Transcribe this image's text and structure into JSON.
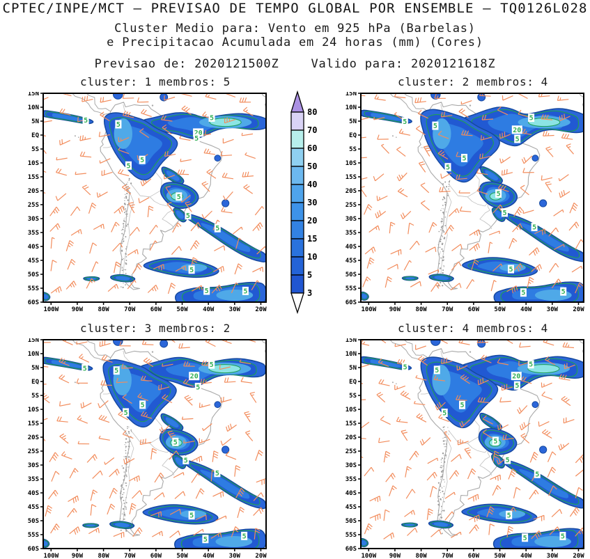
{
  "header": {
    "title": "CPTEC/INPE/MCT – PREVISAO DE TEMPO GLOBAL POR ENSEMBLE – TQ0126L028",
    "subtitle_line1": "Cluster Medio para: Vento em 925 hPa (Barbelas)",
    "subtitle_line2": "e Precipitacao Acumulada em 24 horas (mm) (Cores)",
    "init_label": "Previsao de:",
    "init_value": "2020121500Z",
    "valid_label": "Valido para:",
    "valid_value": "2020121618Z"
  },
  "panels": [
    {
      "cluster_label": "cluster:",
      "cluster_value": "1",
      "membros_label": "membros:",
      "membros_value": "5"
    },
    {
      "cluster_label": "cluster:",
      "cluster_value": "2",
      "membros_label": "membros:",
      "membros_value": "4"
    },
    {
      "cluster_label": "cluster:",
      "cluster_value": "3",
      "membros_label": "membros:",
      "membros_value": "2"
    },
    {
      "cluster_label": "cluster:",
      "cluster_value": "4",
      "membros_label": "membros:",
      "membros_value": "4"
    }
  ],
  "axes": {
    "lat_labels": [
      "15N",
      "10N",
      "5N",
      "EQ",
      "5S",
      "10S",
      "15S",
      "20S",
      "25S",
      "30S",
      "35S",
      "40S",
      "45S",
      "50S",
      "55S",
      "60S"
    ],
    "lon_labels": [
      "100W",
      "90W",
      "80W",
      "70W",
      "60W",
      "50W",
      "40W",
      "30W",
      "20W"
    ]
  },
  "colorbar": {
    "tick_labels_top_to_bottom": [
      "80",
      "70",
      "60",
      "50",
      "40",
      "30",
      "20",
      "15",
      "10",
      "5",
      "3"
    ],
    "cell_colors_top_to_bottom": [
      "#d9d3f5",
      "#b7efec",
      "#8fd0f1",
      "#6cb8ef",
      "#4fa4ec",
      "#3d92e8",
      "#3382e3",
      "#2a72dd",
      "#2463d7",
      "#2156d1"
    ],
    "arrow_top_color": "#ab91e3",
    "arrow_bottom_color": "#ffffff"
  },
  "contour_labels": [
    {
      "value": "5",
      "lon": -86.5,
      "lat": 5.2
    },
    {
      "value": "5",
      "lon": -74.5,
      "lat": 3.9
    },
    {
      "value": "20",
      "lon": -44.5,
      "lat": 1.4
    },
    {
      "value": "5",
      "lon": -44,
      "lat": -1.6
    },
    {
      "value": "5",
      "lon": -39,
      "lat": 5.8
    },
    {
      "value": "5",
      "lon": -70.5,
      "lat": -11
    },
    {
      "value": "5",
      "lon": -64.5,
      "lat": -8.8
    },
    {
      "value": "5",
      "lon": -51.5,
      "lat": -21.6
    },
    {
      "value": "5",
      "lon": -48,
      "lat": -28.4
    },
    {
      "value": "5",
      "lon": -36.5,
      "lat": -33.2
    },
    {
      "value": "5",
      "lon": -46.5,
      "lat": -48.2
    },
    {
      "value": "5",
      "lon": -41,
      "lat": -56.4
    },
    {
      "value": "5",
      "lon": -26.5,
      "lat": -55.6
    }
  ],
  "colors": {
    "wind_barb": "#f28c5c",
    "coastline": "#a9a9a9",
    "border_line": "#bfbfbf",
    "andes_dots": "#9c9c9c",
    "contour_green": "#1fa055",
    "contour_label_green": "#2fae53",
    "precip_outer": "#2b66d9",
    "precip_rim": "#15499f",
    "precip_mid": "#2159d2",
    "precip_inner": "#2e7ce2",
    "precip_core": "#4fa9e8",
    "precip_peak": "#8ce4e4",
    "frame": "#000000"
  },
  "chart_data": {
    "type": "heatmap",
    "title": "CPTEC/INPE/MCT – PREVISAO DE TEMPO GLOBAL POR ENSEMBLE – TQ0126L028",
    "subtitle": "Cluster Medio para: Vento em 925 hPa (Barbelas) e Precipitacao Acumulada em 24 horas (mm) (Cores)",
    "model": "TQ0126L028",
    "init_time": "2020121500Z",
    "valid_time": "2020121618Z",
    "variables": [
      "Vento em 925 hPa (Barbelas)",
      "Precipitacao Acumulada em 24 horas (mm) (Cores)"
    ],
    "panels": [
      {
        "cluster": 1,
        "membros": 5
      },
      {
        "cluster": 2,
        "membros": 4
      },
      {
        "cluster": 3,
        "membros": 2
      },
      {
        "cluster": 4,
        "membros": 4
      }
    ],
    "precip_levels_mm": [
      3,
      5,
      10,
      15,
      20,
      30,
      40,
      50,
      60,
      70,
      80
    ],
    "contour_labels_mm": [
      5,
      20
    ],
    "x_axis_ticks": [
      "100W",
      "90W",
      "80W",
      "70W",
      "60W",
      "50W",
      "40W",
      "30W",
      "20W"
    ],
    "y_axis_ticks": [
      "15N",
      "10N",
      "5N",
      "EQ",
      "5S",
      "10S",
      "15S",
      "20S",
      "25S",
      "30S",
      "35S",
      "40S",
      "45S",
      "50S",
      "55S",
      "60S"
    ],
    "lon_range": [
      -103,
      -18
    ],
    "lat_range": [
      -60,
      15
    ],
    "legend_position": "between top panels",
    "grid": false
  }
}
